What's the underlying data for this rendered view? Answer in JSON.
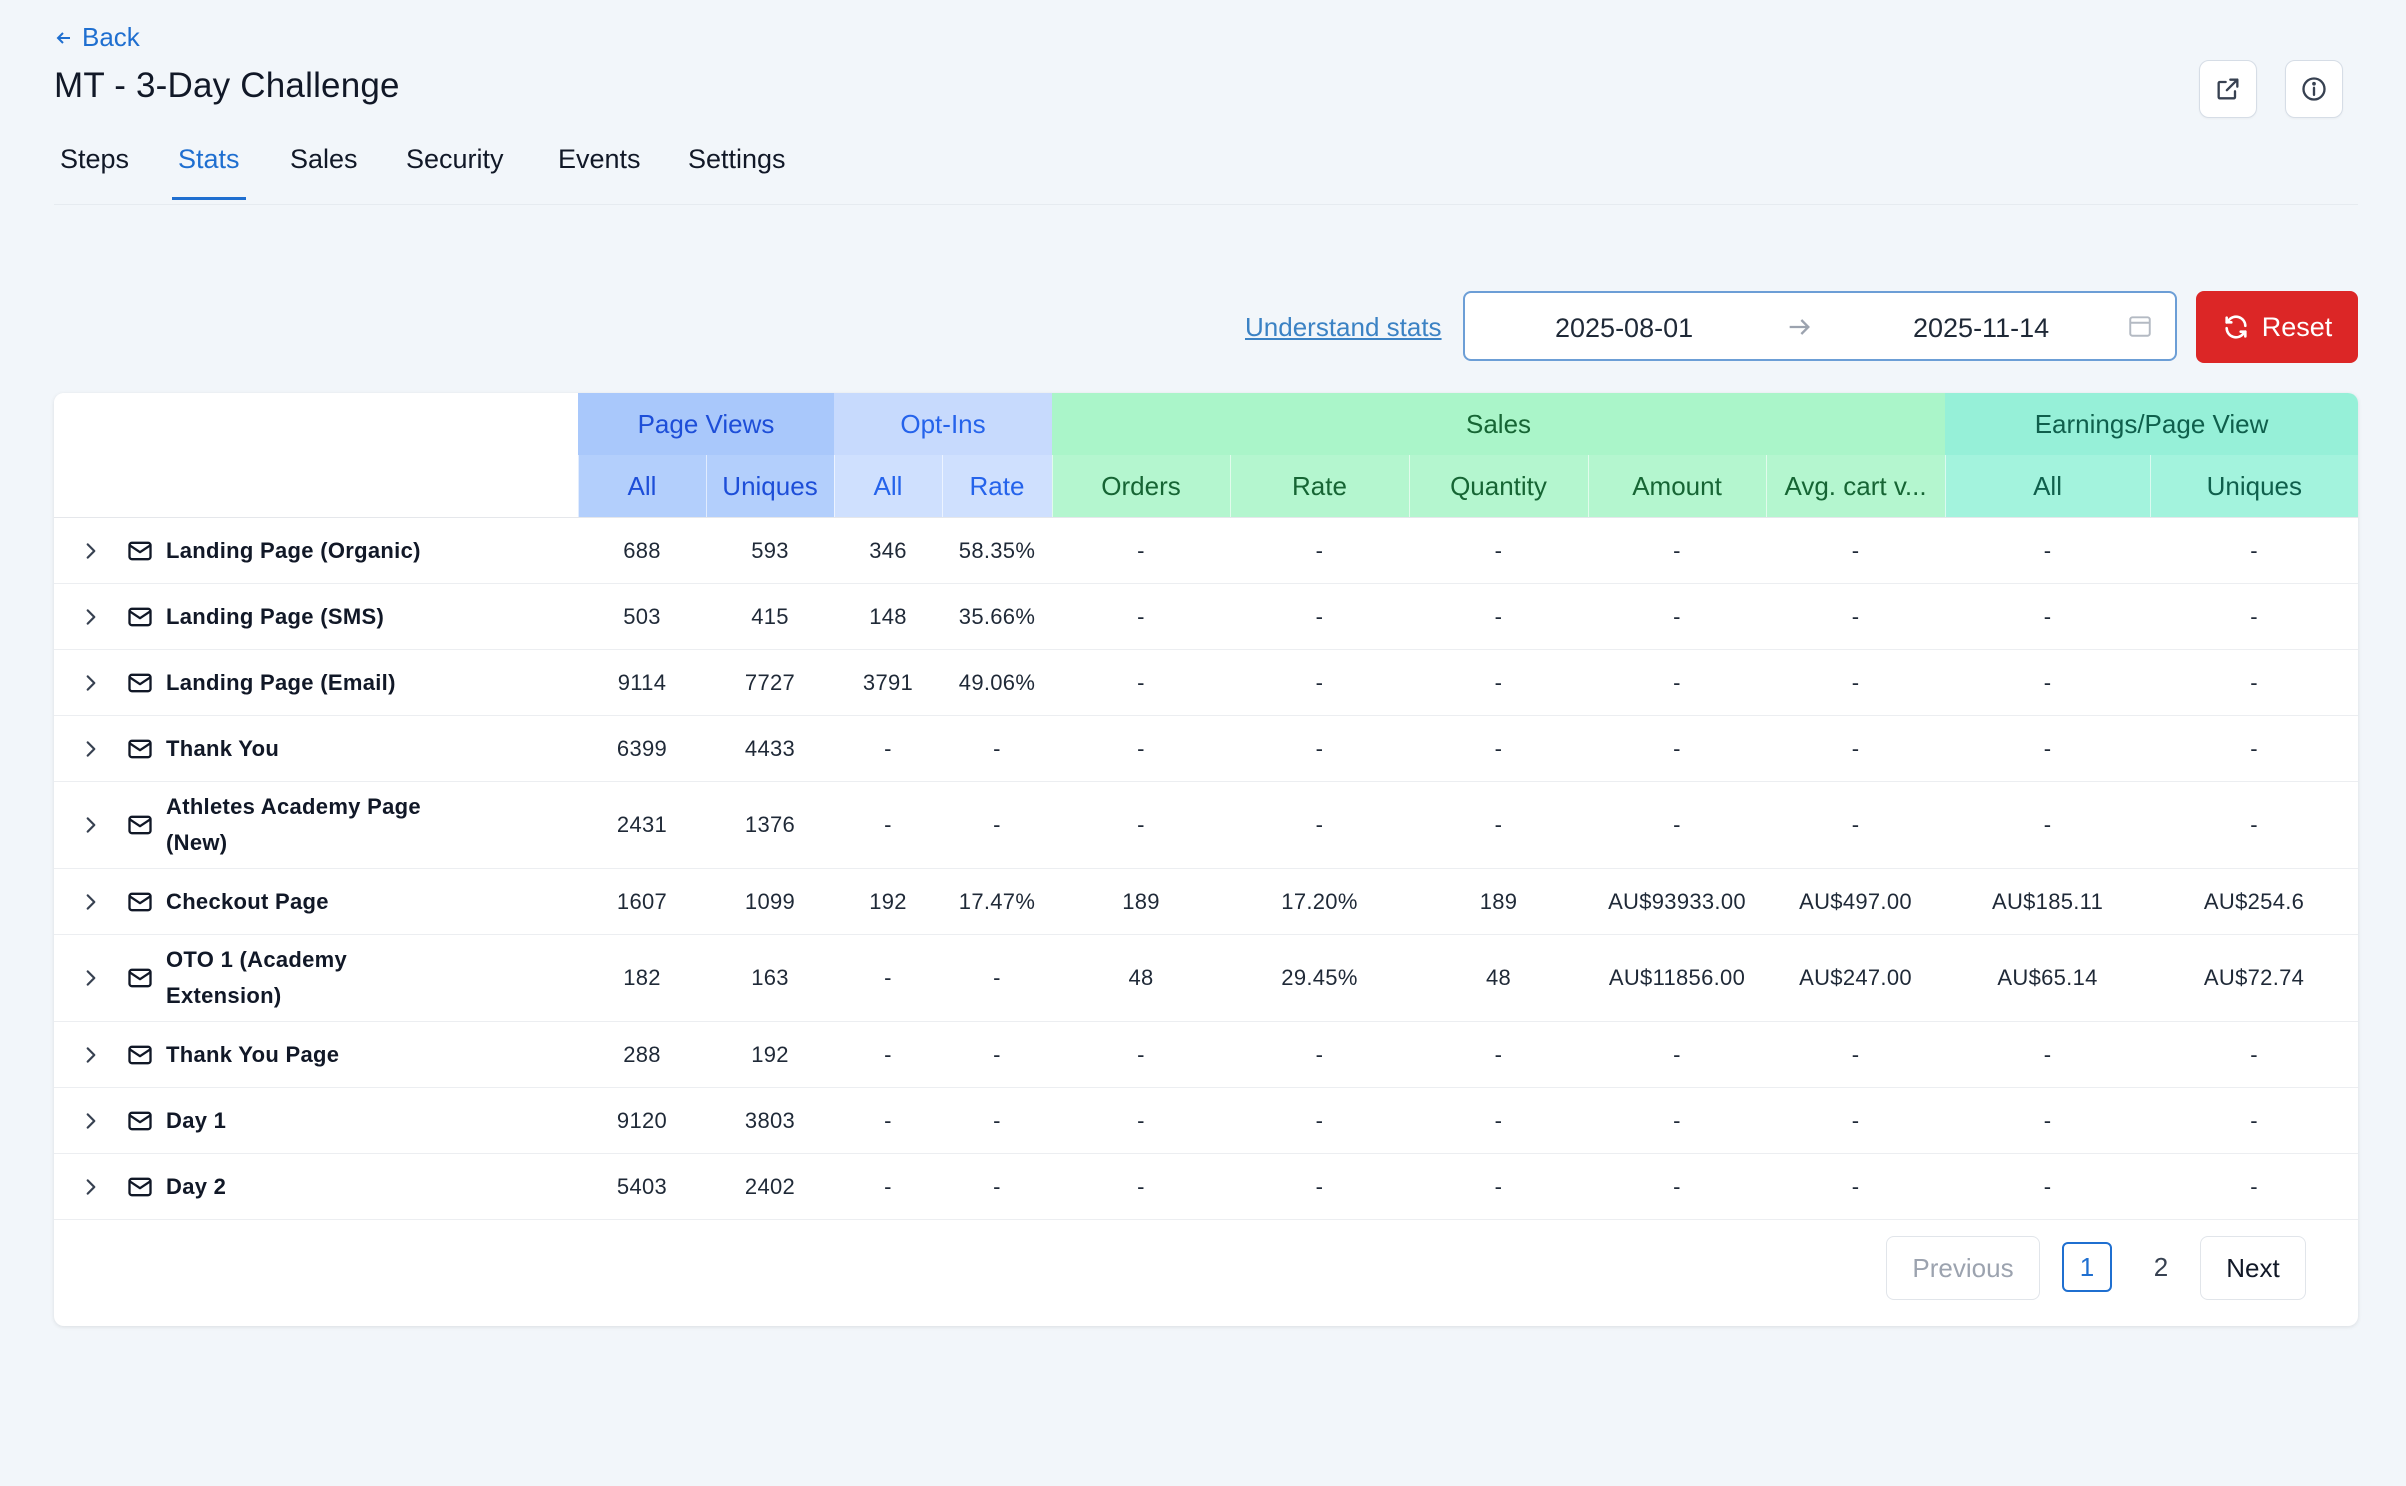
{
  "header": {
    "back_label": "Back",
    "title": "MT - 3-Day Challenge"
  },
  "tabs": [
    {
      "label": "Steps"
    },
    {
      "label": "Stats",
      "active": true
    },
    {
      "label": "Sales"
    },
    {
      "label": "Security"
    },
    {
      "label": "Events"
    },
    {
      "label": "Settings"
    }
  ],
  "filters": {
    "understand_label": "Understand stats",
    "start_date": "2025-08-01",
    "end_date": "2025-11-14",
    "reset_label": "Reset"
  },
  "table": {
    "groups": {
      "page_views": "Page Views",
      "opt_ins": "Opt-Ins",
      "sales": "Sales",
      "earnings": "Earnings/Page View"
    },
    "columns": {
      "pv_all": "All",
      "pv_uniques": "Uniques",
      "oi_all": "All",
      "oi_rate": "Rate",
      "orders": "Orders",
      "sales_rate": "Rate",
      "quantity": "Quantity",
      "amount": "Amount",
      "avg_cart": "Avg. cart v...",
      "ep_all": "All",
      "ep_uniques": "Uniques"
    },
    "rows": [
      {
        "name": "Landing Page (Organic)",
        "v": [
          "688",
          "593",
          "346",
          "58.35%",
          "-",
          "-",
          "-",
          "-",
          "-",
          "-",
          "-"
        ]
      },
      {
        "name": "Landing Page (SMS)",
        "v": [
          "503",
          "415",
          "148",
          "35.66%",
          "-",
          "-",
          "-",
          "-",
          "-",
          "-",
          "-"
        ]
      },
      {
        "name": "Landing Page (Email)",
        "v": [
          "9114",
          "7727",
          "3791",
          "49.06%",
          "-",
          "-",
          "-",
          "-",
          "-",
          "-",
          "-"
        ]
      },
      {
        "name": "Thank You",
        "v": [
          "6399",
          "4433",
          "-",
          "-",
          "-",
          "-",
          "-",
          "-",
          "-",
          "-",
          "-"
        ]
      },
      {
        "name": "Athletes Academy Page (New)",
        "v": [
          "2431",
          "1376",
          "-",
          "-",
          "-",
          "-",
          "-",
          "-",
          "-",
          "-",
          "-"
        ]
      },
      {
        "name": "Checkout Page",
        "v": [
          "1607",
          "1099",
          "192",
          "17.47%",
          "189",
          "17.20%",
          "189",
          "AU$93933.00",
          "AU$497.00",
          "AU$185.11",
          "AU$254.6"
        ]
      },
      {
        "name": "OTO 1 (Academy Extension)",
        "v": [
          "182",
          "163",
          "-",
          "-",
          "48",
          "29.45%",
          "48",
          "AU$11856.00",
          "AU$247.00",
          "AU$65.14",
          "AU$72.74"
        ]
      },
      {
        "name": "Thank You Page",
        "v": [
          "288",
          "192",
          "-",
          "-",
          "-",
          "-",
          "-",
          "-",
          "-",
          "-",
          "-"
        ]
      },
      {
        "name": "Day 1",
        "v": [
          "9120",
          "3803",
          "-",
          "-",
          "-",
          "-",
          "-",
          "-",
          "-",
          "-",
          "-"
        ]
      },
      {
        "name": "Day 2",
        "v": [
          "5403",
          "2402",
          "-",
          "-",
          "-",
          "-",
          "-",
          "-",
          "-",
          "-",
          "-"
        ]
      }
    ]
  },
  "pagination": {
    "previous_label": "Previous",
    "page_1": "1",
    "page_2": "2",
    "next_label": "Next"
  }
}
